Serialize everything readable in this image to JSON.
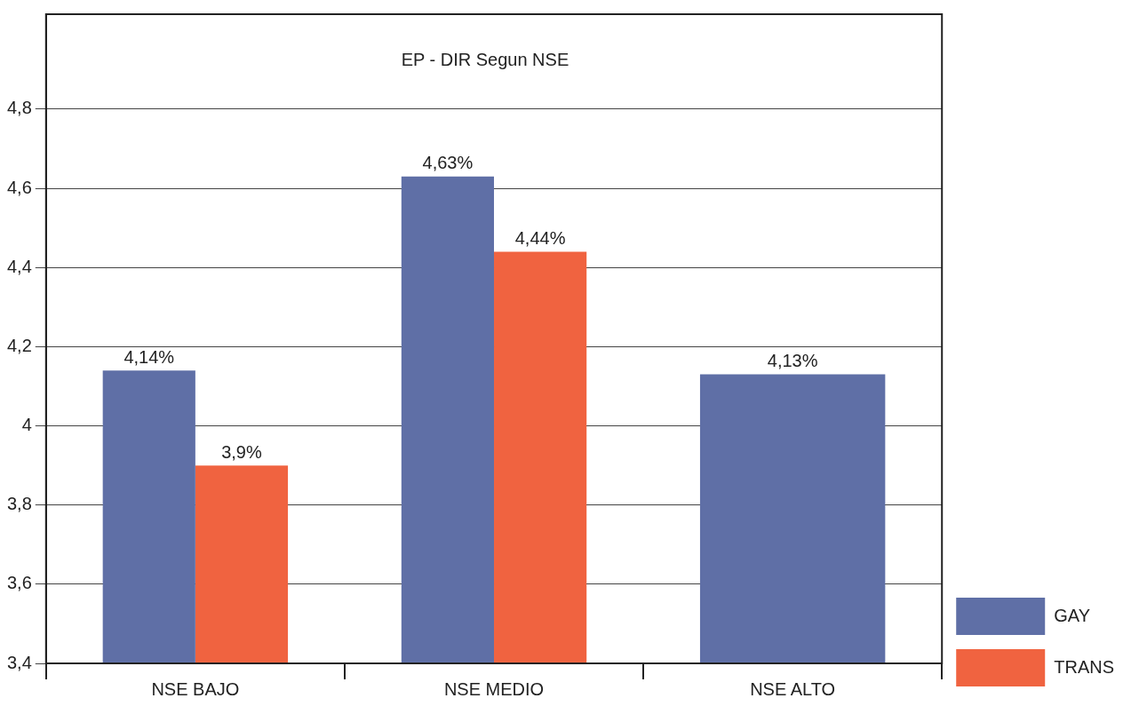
{
  "chart_data": {
    "type": "bar",
    "title": "EP - DIR Segun NSE",
    "categories": [
      "NSE BAJO",
      "NSE MEDIO",
      "NSE ALTO"
    ],
    "series": [
      {
        "name": "GAY",
        "color": "#5f6fa6",
        "values": [
          4.14,
          4.63,
          4.13
        ],
        "value_labels": [
          "4,14%",
          "4,63%",
          "4,13%"
        ]
      },
      {
        "name": "TRANS",
        "color": "#f06340",
        "values": [
          3.9,
          4.44,
          null
        ],
        "value_labels": [
          "3,9%",
          "4,44%",
          null
        ]
      }
    ],
    "ylim": [
      3.4,
      5.04
    ],
    "yticks": [
      {
        "value": 3.4,
        "label": "3,4"
      },
      {
        "value": 3.6,
        "label": "3,6"
      },
      {
        "value": 3.8,
        "label": "3,8"
      },
      4,
      {
        "value": 4.2,
        "label": "4,2"
      },
      {
        "value": 4.4,
        "label": "4,4"
      },
      {
        "value": 4.6,
        "label": "4,6"
      },
      {
        "value": 4.8,
        "label": "4,8"
      }
    ],
    "grid": "y",
    "legend": "bottom right"
  }
}
